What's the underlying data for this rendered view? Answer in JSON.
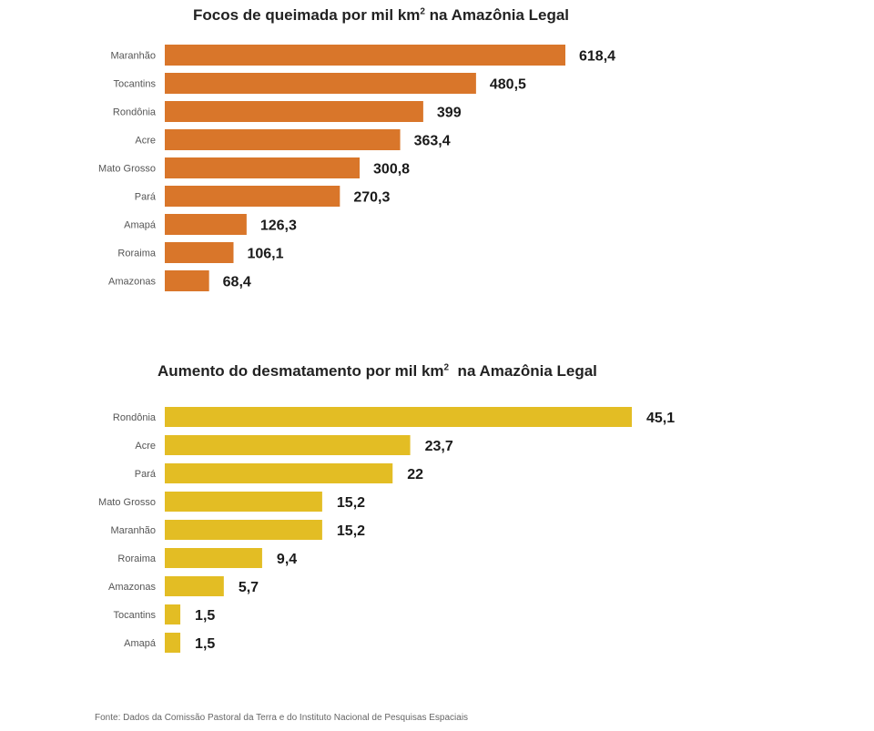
{
  "chart_data": [
    {
      "type": "bar",
      "orientation": "horizontal",
      "title_main": "Focos de queimada por mil km",
      "title_sup": "2",
      "title_rest": " na Amazônia Legal",
      "title": "Focos de queimada por mil km² na Amazônia Legal",
      "xlabel": "",
      "ylabel": "",
      "grid": false,
      "legend": "none",
      "color": "#D9762A",
      "categories": [
        "Maranhão",
        "Tocantins",
        "Rondônia",
        "Acre",
        "Mato Grosso",
        "Pará",
        "Amapá",
        "Roraima",
        "Amazonas"
      ],
      "values": [
        618.4,
        480.5,
        399,
        363.4,
        300.8,
        270.3,
        126.3,
        106.1,
        68.4
      ],
      "value_labels": [
        "618,4",
        "480,5",
        "399",
        "363,4",
        "300,8",
        "270,3",
        "126,3",
        "106,1",
        "68,4"
      ],
      "xlim": [
        0,
        618.4
      ]
    },
    {
      "type": "bar",
      "orientation": "horizontal",
      "title_main": "Aumento do desmatamento por mil km",
      "title_sup": "2",
      "title_rest": "  na Amazônia Legal",
      "title": "Aumento do desmatamento por mil km²  na Amazônia Legal",
      "xlabel": "",
      "ylabel": "",
      "grid": false,
      "legend": "none",
      "color": "#E3BD24",
      "categories": [
        "Rondônia",
        "Acre",
        "Pará",
        "Mato Grosso",
        "Maranhão",
        "Roraima",
        "Amazonas",
        "Tocantins",
        "Amapá"
      ],
      "values": [
        45.1,
        23.7,
        22,
        15.2,
        15.2,
        9.4,
        5.7,
        1.5,
        1.5
      ],
      "value_labels": [
        "45,1",
        "23,7",
        "22",
        "15,2",
        "15,2",
        "9,4",
        "5,7",
        "1,5",
        "1,5"
      ],
      "xlim": [
        0,
        45.1
      ]
    }
  ],
  "footer": "Fonte: Dados da Comissão Pastoral da Terra e do Instituto Nacional de Pesquisas Espaciais"
}
